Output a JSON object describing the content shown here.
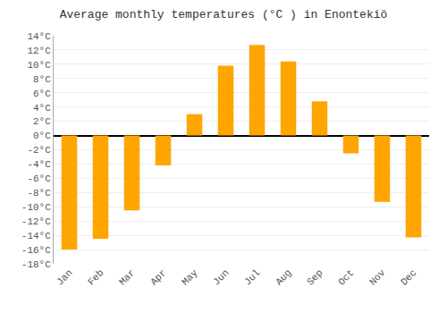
{
  "chart_data": {
    "type": "bar",
    "title": "Average monthly temperatures (°C ) in Enontekiö",
    "categories": [
      "Jan",
      "Feb",
      "Mar",
      "Apr",
      "May",
      "Jun",
      "Jul",
      "Aug",
      "Sep",
      "Oct",
      "Nov",
      "Dec"
    ],
    "values": [
      -16,
      -14.5,
      -10.5,
      -4.2,
      3.0,
      9.8,
      12.7,
      10.4,
      4.8,
      -2.5,
      -9.3,
      -14.3
    ],
    "color": "#FFA500",
    "ylim": [
      -18,
      14
    ],
    "yticks": [
      {
        "value": -18,
        "label": "-18°C"
      },
      {
        "value": -16,
        "label": "-16°C"
      },
      {
        "value": -14,
        "label": "-14°C"
      },
      {
        "value": -12,
        "label": "-12°C"
      },
      {
        "value": -10,
        "label": "-10°C"
      },
      {
        "value": -8,
        "label": "-8°C"
      },
      {
        "value": -6,
        "label": "-6°C"
      },
      {
        "value": -4,
        "label": "-4°C"
      },
      {
        "value": -2,
        "label": "-2°C"
      },
      {
        "value": 0,
        "label": "0°C"
      },
      {
        "value": 2,
        "label": "2°C"
      },
      {
        "value": 4,
        "label": "4°C"
      },
      {
        "value": 6,
        "label": "6°C"
      },
      {
        "value": 8,
        "label": "8°C"
      },
      {
        "value": 10,
        "label": "10°C"
      },
      {
        "value": 12,
        "label": "12°C"
      },
      {
        "value": 14,
        "label": "14°C"
      }
    ],
    "grid": true
  }
}
